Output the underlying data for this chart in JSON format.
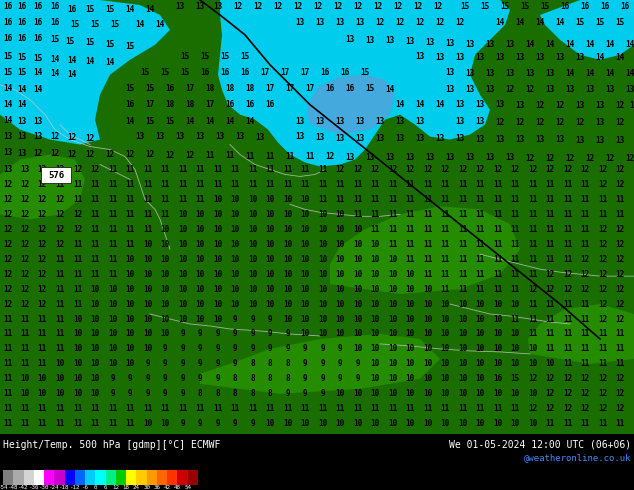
{
  "title_left": "Height/Temp. 500 hPa [gdmp][°C] ECMWF",
  "title_right": "We 01-05-2024 12:00 UTC (06+06)",
  "credit": "@weatheronline.co.uk",
  "colorbar_values": [
    -54,
    -48,
    -42,
    -36,
    -30,
    -24,
    -18,
    -12,
    -6,
    0,
    6,
    12,
    18,
    24,
    30,
    36,
    42,
    48,
    54
  ],
  "colorbar_colors": [
    "#7f7f7f",
    "#aaaaaa",
    "#d4d4d4",
    "#ffffff",
    "#ff00ff",
    "#cc00cc",
    "#0000ff",
    "#0066ff",
    "#00ccff",
    "#00ffff",
    "#00ee88",
    "#00cc00",
    "#ffff00",
    "#ffcc00",
    "#ff9900",
    "#ff6600",
    "#ff3300",
    "#cc0000",
    "#990000"
  ],
  "bg_color": "#000000",
  "text_color": "#ffffff",
  "figsize": [
    6.34,
    4.9
  ],
  "dpi": 100,
  "ocean_color": "#00ccee",
  "land_dark": "#1a6e00",
  "land_mid": "#228b00",
  "land_bright": "#33aa00",
  "border_color": "#c8c8c8",
  "contour_color": "#000000",
  "front_color": "#000000"
}
